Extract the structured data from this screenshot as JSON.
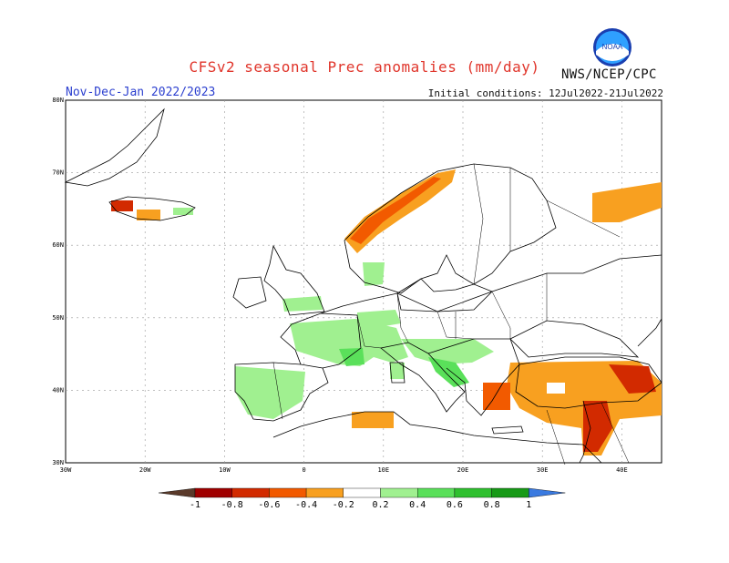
{
  "header": {
    "title": "CFSv2 seasonal Prec anomalies (mm/day)",
    "period": "Nov-Dec-Jan 2022/2023",
    "initial_conditions": "Initial conditions: 12Jul2022-21Jul2022",
    "agency": "NWS/NCEP/CPC",
    "logo_text": "NOAA"
  },
  "map": {
    "lat_range": [
      30,
      80
    ],
    "lon_range": [
      -30,
      45
    ],
    "lat_labels": [
      "30N",
      "40N",
      "50N",
      "60N",
      "70N",
      "80N"
    ],
    "lon_labels": [
      "30W",
      "20W",
      "10W",
      "0",
      "10E",
      "20E",
      "30E",
      "40E"
    ]
  },
  "colorbar": {
    "labels": [
      "-1",
      "-0.8",
      "-0.6",
      "-0.4",
      "-0.2",
      "0.2",
      "0.4",
      "0.6",
      "0.8",
      "1"
    ],
    "colors": [
      "#5a3a2a",
      "#a00000",
      "#d22a00",
      "#f25a00",
      "#f8a020",
      "#ffffff",
      "#a0f090",
      "#5ae05a",
      "#2fc02f",
      "#179a17",
      "#3a7ae0"
    ]
  }
}
